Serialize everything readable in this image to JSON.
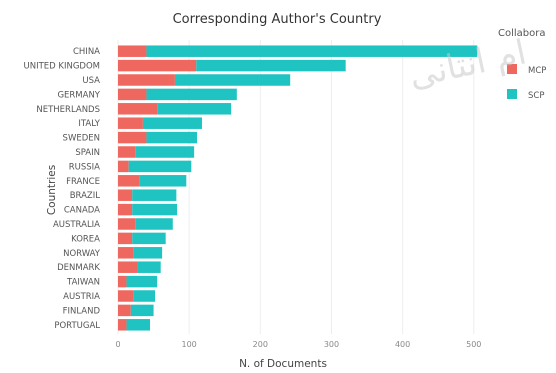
{
  "chart_data": {
    "type": "bar",
    "orientation": "horizontal",
    "stacked": true,
    "title": "Corresponding Author's Country",
    "xlabel": "N. of Documents",
    "ylabel": "Countries",
    "xlim": [
      0,
      520
    ],
    "xticks": [
      0,
      100,
      200,
      300,
      400,
      500
    ],
    "grid": true,
    "categories": [
      "CHINA",
      "UNITED KINGDOM",
      "USA",
      "GERMANY",
      "NETHERLANDS",
      "ITALY",
      "SWEDEN",
      "SPAIN",
      "RUSSIA",
      "FRANCE",
      "BRAZIL",
      "CANADA",
      "AUSTRALIA",
      "KOREA",
      "NORWAY",
      "DENMARK",
      "TAIWAN",
      "AUSTRIA",
      "FINLAND",
      "PORTUGAL"
    ],
    "series": [
      {
        "name": "MCP",
        "color": "#ef6860",
        "values": [
          40,
          110,
          80,
          40,
          55,
          35,
          40,
          25,
          15,
          30,
          20,
          20,
          25,
          20,
          22,
          28,
          12,
          22,
          18,
          12
        ]
      },
      {
        "name": "SCP",
        "color": "#1fc3c1",
        "values": [
          465,
          210,
          162,
          127,
          104,
          83,
          71,
          82,
          88,
          66,
          62,
          63,
          52,
          47,
          40,
          32,
          43,
          30,
          32,
          33
        ]
      }
    ],
    "legend": {
      "title": "Collabora",
      "position": "right"
    },
    "watermark_text": "ام انتانی"
  }
}
